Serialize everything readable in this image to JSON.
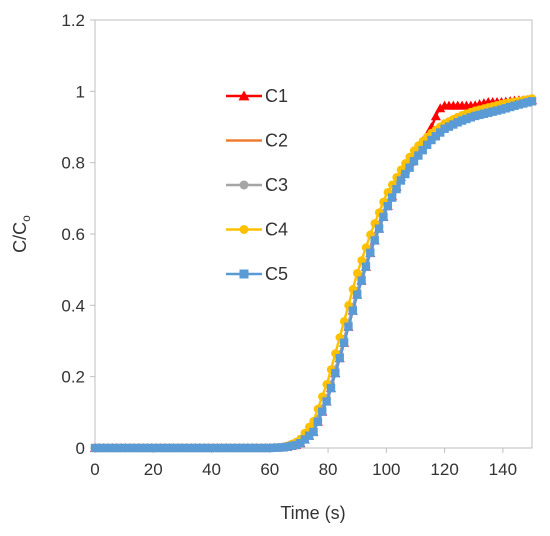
{
  "chart_data": {
    "type": "line",
    "xlabel": "Time (s)",
    "ylabel": "C/C",
    "ylabel_subscript": "o",
    "xlim": [
      0,
      150
    ],
    "ylim": [
      0,
      1.2
    ],
    "xticks": [
      "0",
      "20",
      "40",
      "60",
      "80",
      "100",
      "120",
      "140"
    ],
    "yticks": [
      "0",
      "0.2",
      "0.4",
      "0.6",
      "0.8",
      "1",
      "1.2"
    ],
    "grid": false,
    "legend_position": "left-center",
    "series": [
      {
        "name": "C1",
        "color": "#ff0000",
        "marker": "triangle",
        "x": [
          0,
          60,
          65,
          70,
          75,
          80,
          85,
          90,
          95,
          100,
          105,
          110,
          115,
          118,
          120,
          125,
          130,
          135,
          140,
          145,
          150
        ],
        "y": [
          0,
          0,
          0.002,
          0.01,
          0.045,
          0.14,
          0.28,
          0.43,
          0.56,
          0.67,
          0.76,
          0.83,
          0.89,
          0.95,
          0.96,
          0.96,
          0.96,
          0.97,
          0.97,
          0.975,
          0.975
        ]
      },
      {
        "name": "C2",
        "color": "#ed7d31",
        "marker": "none",
        "x": [
          0,
          60,
          65,
          70,
          75,
          80,
          85,
          90,
          95,
          100,
          105,
          110,
          115,
          120,
          125,
          130,
          135,
          140,
          145,
          150
        ],
        "y": [
          0,
          0,
          0.002,
          0.012,
          0.05,
          0.15,
          0.29,
          0.44,
          0.57,
          0.68,
          0.76,
          0.82,
          0.87,
          0.9,
          0.92,
          0.935,
          0.945,
          0.955,
          0.965,
          0.975
        ]
      },
      {
        "name": "C3",
        "color": "#a5a5a5",
        "marker": "circle",
        "x": [
          0,
          60,
          65,
          70,
          75,
          80,
          85,
          90,
          95,
          100,
          105,
          110,
          115,
          120,
          125,
          130,
          135,
          140,
          145,
          150
        ],
        "y": [
          0,
          0,
          0.002,
          0.012,
          0.05,
          0.15,
          0.29,
          0.44,
          0.57,
          0.68,
          0.76,
          0.82,
          0.87,
          0.9,
          0.92,
          0.935,
          0.945,
          0.955,
          0.965,
          0.975
        ]
      },
      {
        "name": "C4",
        "color": "#ffc000",
        "marker": "circle",
        "x": [
          0,
          60,
          65,
          70,
          75,
          80,
          85,
          90,
          95,
          100,
          105,
          110,
          115,
          120,
          125,
          130,
          135,
          140,
          145,
          150
        ],
        "y": [
          0,
          0,
          0.003,
          0.02,
          0.075,
          0.19,
          0.34,
          0.49,
          0.61,
          0.71,
          0.78,
          0.84,
          0.88,
          0.91,
          0.93,
          0.945,
          0.955,
          0.965,
          0.972,
          0.98
        ]
      },
      {
        "name": "C5",
        "color": "#5b9bd5",
        "marker": "square",
        "x": [
          0,
          60,
          65,
          70,
          75,
          80,
          85,
          90,
          95,
          100,
          105,
          110,
          115,
          120,
          125,
          130,
          135,
          140,
          145,
          150
        ],
        "y": [
          0,
          0,
          0.002,
          0.01,
          0.045,
          0.14,
          0.28,
          0.43,
          0.56,
          0.67,
          0.75,
          0.81,
          0.86,
          0.895,
          0.915,
          0.93,
          0.94,
          0.95,
          0.962,
          0.972
        ]
      }
    ]
  }
}
